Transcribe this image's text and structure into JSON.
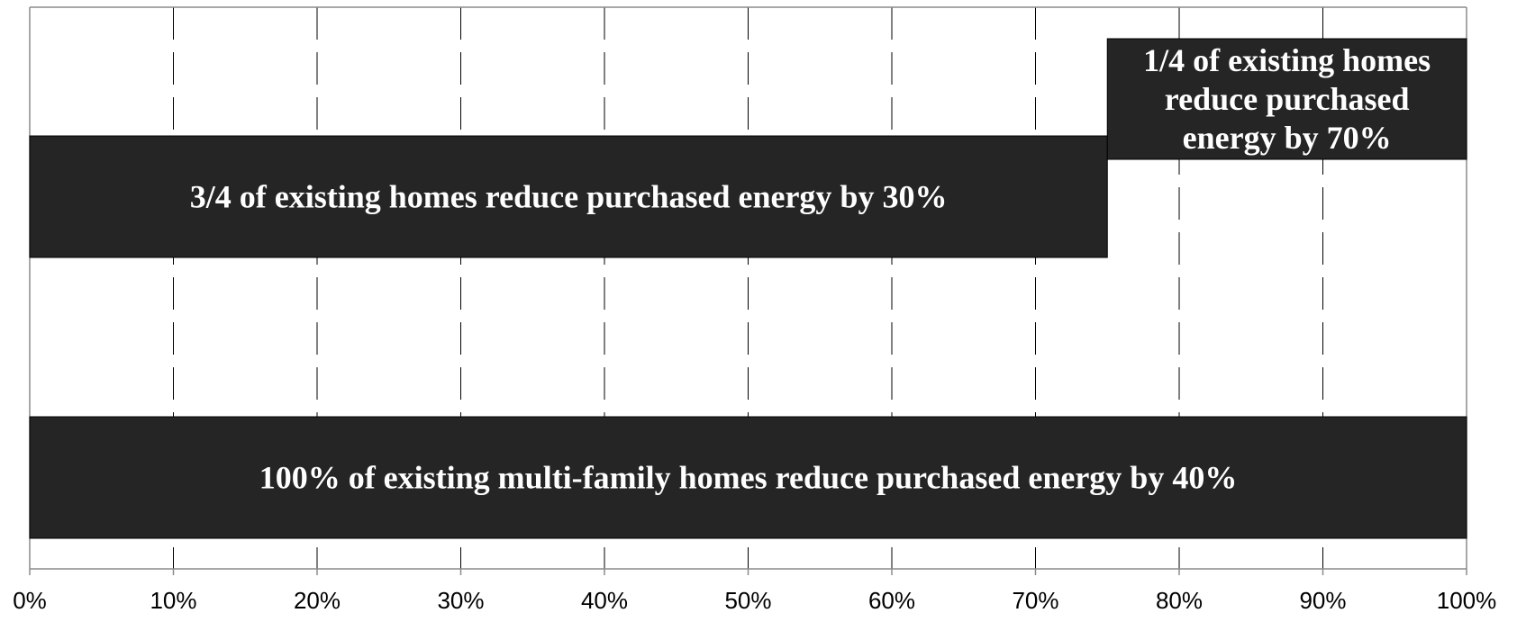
{
  "chart_data": {
    "type": "bar",
    "orientation": "horizontal",
    "stacked": true,
    "xlim": [
      0,
      100
    ],
    "x_ticks": [
      0,
      10,
      20,
      30,
      40,
      50,
      60,
      70,
      80,
      90,
      100
    ],
    "x_tick_labels": [
      "0%",
      "10%",
      "20%",
      "30%",
      "40%",
      "50%",
      "60%",
      "70%",
      "80%",
      "90%",
      "100%"
    ],
    "grid": "vertical dashed",
    "bars": [
      {
        "row": "upper",
        "segments": [
          {
            "start": 0,
            "end": 75,
            "label_lines": [
              "3/4 of existing homes reduce purchased energy by 30%"
            ]
          },
          {
            "start": 75,
            "end": 100,
            "label_lines": [
              "1/4 of existing homes",
              "reduce purchased",
              "energy by 70%"
            ]
          }
        ]
      },
      {
        "row": "lower",
        "segments": [
          {
            "start": 0,
            "end": 100,
            "label_lines": [
              "100% of existing multi-family homes reduce purchased energy by 40%"
            ]
          }
        ]
      }
    ],
    "colors": {
      "bar_fill": "#252525",
      "bar_text": "#ffffff",
      "grid": "#000000",
      "frame": "#8c8c8c"
    }
  }
}
